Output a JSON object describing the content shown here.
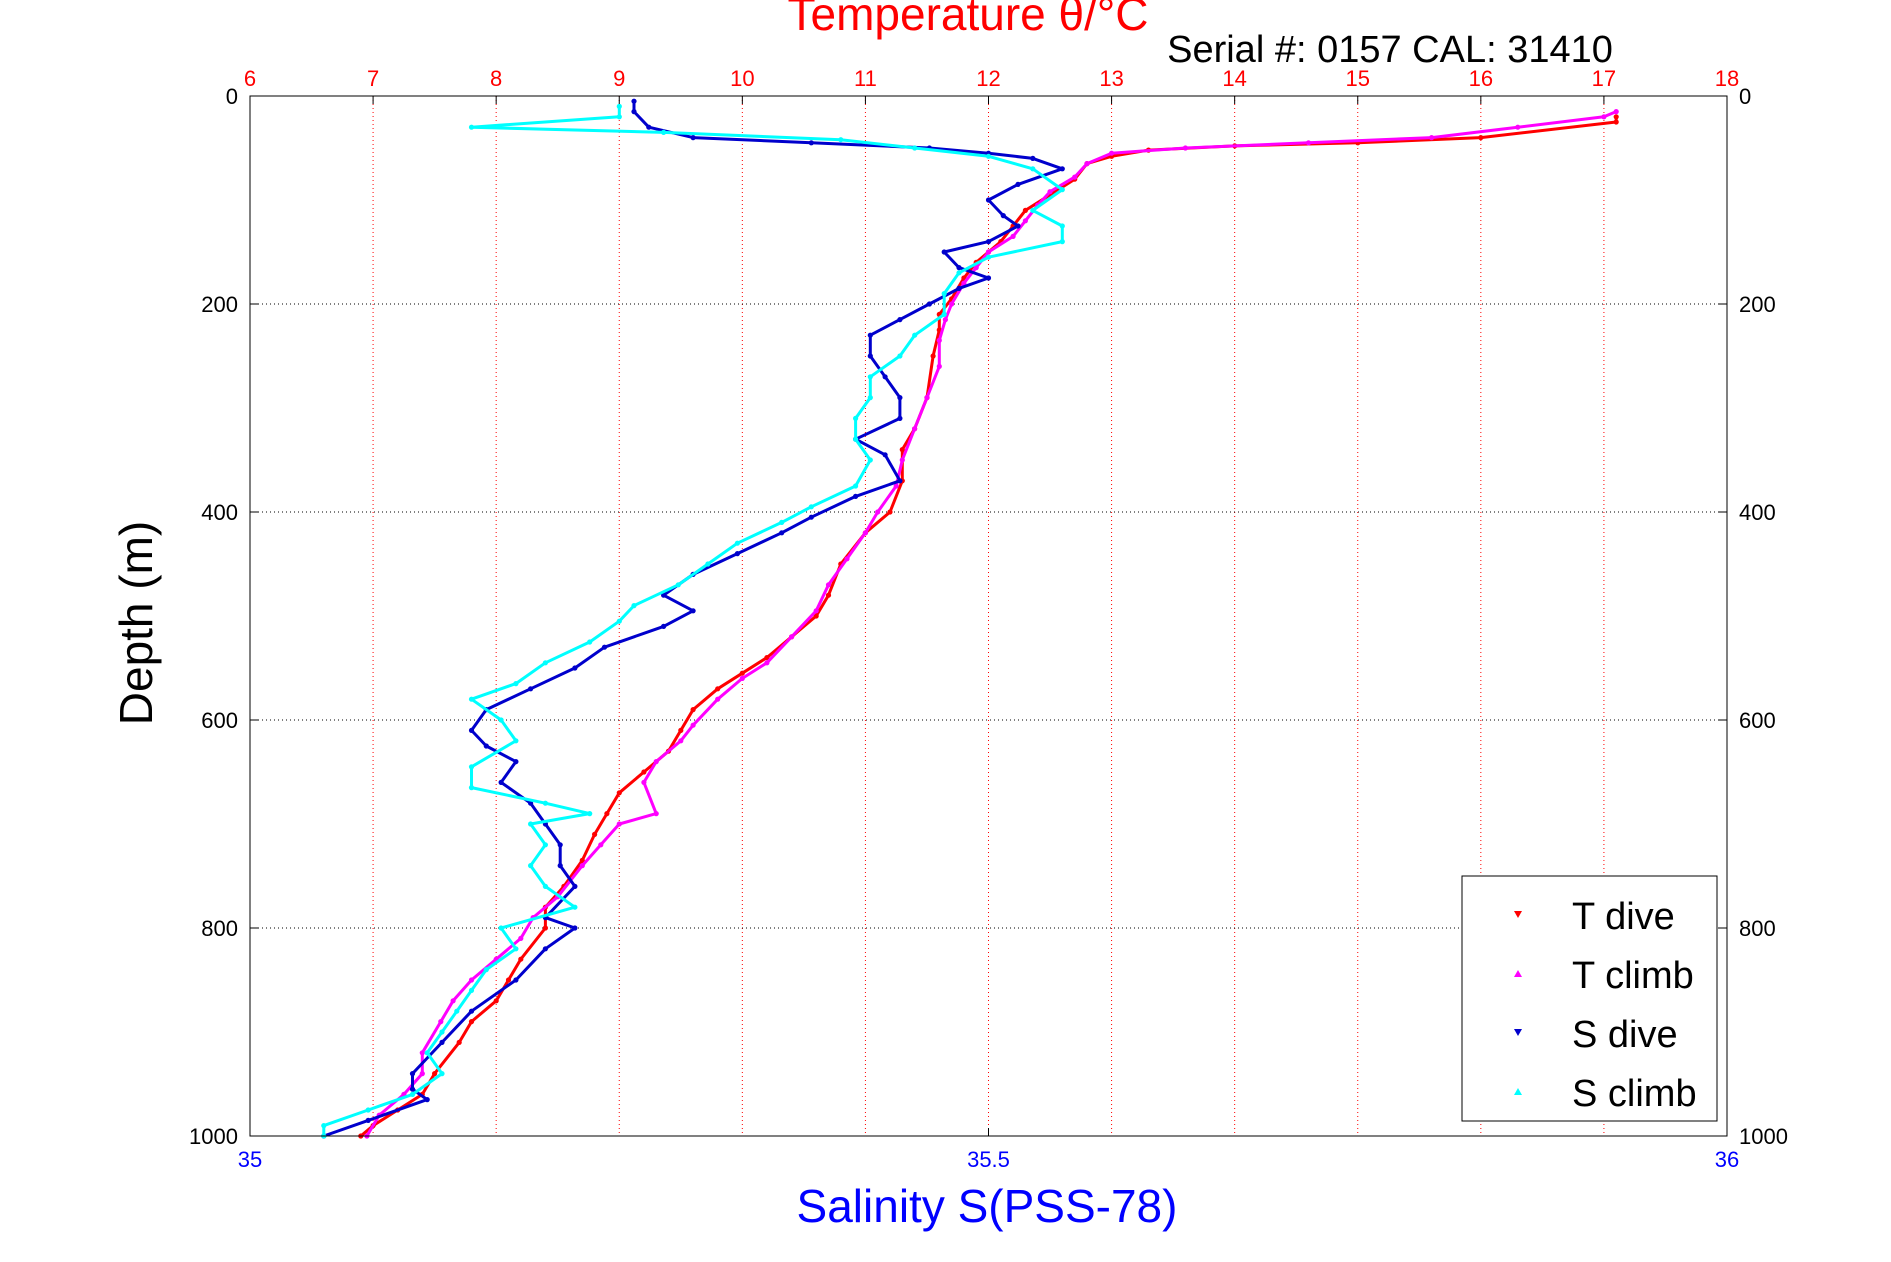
{
  "chart_data": {
    "type": "scatter",
    "title": "Temperature θ/°C",
    "subtitle": "Serial #: 0157  CAL: 31410",
    "ylabel": "Depth (m)",
    "xlabel_bottom": "Salinity S(PSS-78)",
    "top_axis": {
      "range": [
        6,
        18
      ],
      "ticks": [
        "6",
        "7",
        "8",
        "9",
        "10",
        "11",
        "12",
        "13",
        "14",
        "15",
        "16",
        "17",
        "18"
      ],
      "color": "#ff0000"
    },
    "bottom_axis": {
      "range": [
        35,
        36
      ],
      "ticks": [
        "35",
        "35.5",
        "36"
      ],
      "color": "#0000ff"
    },
    "y_axis": {
      "range": [
        0,
        1000
      ],
      "reversed": true,
      "ticks": [
        "0",
        "200",
        "400",
        "600",
        "800",
        "1000"
      ]
    },
    "grid": true,
    "legend_position": "bottom-right",
    "legend": [
      {
        "label": "T dive",
        "color": "#ff0000"
      },
      {
        "label": "T climb",
        "color": "#ff00ff"
      },
      {
        "label": "S dive",
        "color": "#0000cc"
      },
      {
        "label": "S climb",
        "color": "#00ffff"
      }
    ],
    "series": [
      {
        "name": "T dive",
        "axis": "temperature",
        "color": "#ff0000",
        "points": [
          [
            17.1,
            20
          ],
          [
            17.1,
            25
          ],
          [
            16.0,
            40
          ],
          [
            15.0,
            45
          ],
          [
            14.0,
            48
          ],
          [
            13.3,
            52
          ],
          [
            13.0,
            58
          ],
          [
            12.8,
            65
          ],
          [
            12.7,
            80
          ],
          [
            12.5,
            95
          ],
          [
            12.3,
            110
          ],
          [
            12.2,
            125
          ],
          [
            12.1,
            140
          ],
          [
            12.0,
            150
          ],
          [
            11.9,
            160
          ],
          [
            11.8,
            175
          ],
          [
            11.7,
            195
          ],
          [
            11.6,
            210
          ],
          [
            11.6,
            225
          ],
          [
            11.55,
            250
          ],
          [
            11.5,
            290
          ],
          [
            11.4,
            320
          ],
          [
            11.3,
            340
          ],
          [
            11.3,
            370
          ],
          [
            11.2,
            400
          ],
          [
            11.0,
            420
          ],
          [
            10.8,
            450
          ],
          [
            10.7,
            480
          ],
          [
            10.6,
            500
          ],
          [
            10.4,
            520
          ],
          [
            10.2,
            540
          ],
          [
            10.0,
            555
          ],
          [
            9.8,
            570
          ],
          [
            9.6,
            590
          ],
          [
            9.5,
            610
          ],
          [
            9.4,
            630
          ],
          [
            9.2,
            650
          ],
          [
            9.0,
            670
          ],
          [
            8.9,
            690
          ],
          [
            8.8,
            710
          ],
          [
            8.7,
            735
          ],
          [
            8.55,
            760
          ],
          [
            8.4,
            780
          ],
          [
            8.4,
            800
          ],
          [
            8.2,
            830
          ],
          [
            8.1,
            850
          ],
          [
            8.0,
            870
          ],
          [
            7.8,
            890
          ],
          [
            7.7,
            910
          ],
          [
            7.5,
            940
          ],
          [
            7.4,
            960
          ],
          [
            7.2,
            975
          ],
          [
            7.0,
            990
          ],
          [
            6.9,
            1000
          ]
        ]
      },
      {
        "name": "T climb",
        "axis": "temperature",
        "color": "#ff00ff",
        "points": [
          [
            17.1,
            15
          ],
          [
            17.0,
            20
          ],
          [
            16.3,
            30
          ],
          [
            15.6,
            40
          ],
          [
            14.6,
            45
          ],
          [
            13.6,
            50
          ],
          [
            13.0,
            55
          ],
          [
            12.8,
            65
          ],
          [
            12.7,
            78
          ],
          [
            12.5,
            92
          ],
          [
            12.4,
            105
          ],
          [
            12.3,
            120
          ],
          [
            12.2,
            135
          ],
          [
            12.0,
            150
          ],
          [
            11.9,
            165
          ],
          [
            11.8,
            180
          ],
          [
            11.7,
            200
          ],
          [
            11.65,
            215
          ],
          [
            11.6,
            235
          ],
          [
            11.6,
            260
          ],
          [
            11.5,
            290
          ],
          [
            11.4,
            320
          ],
          [
            11.3,
            350
          ],
          [
            11.25,
            375
          ],
          [
            11.1,
            400
          ],
          [
            11.0,
            420
          ],
          [
            10.85,
            445
          ],
          [
            10.7,
            470
          ],
          [
            10.6,
            495
          ],
          [
            10.4,
            520
          ],
          [
            10.2,
            545
          ],
          [
            10.0,
            560
          ],
          [
            9.8,
            580
          ],
          [
            9.6,
            605
          ],
          [
            9.5,
            620
          ],
          [
            9.3,
            640
          ],
          [
            9.2,
            660
          ],
          [
            9.3,
            690
          ],
          [
            9.0,
            700
          ],
          [
            8.85,
            720
          ],
          [
            8.7,
            740
          ],
          [
            8.5,
            770
          ],
          [
            8.3,
            790
          ],
          [
            8.2,
            810
          ],
          [
            8.0,
            830
          ],
          [
            7.8,
            850
          ],
          [
            7.65,
            870
          ],
          [
            7.55,
            890
          ],
          [
            7.4,
            920
          ],
          [
            7.4,
            940
          ],
          [
            7.25,
            960
          ],
          [
            7.05,
            980
          ],
          [
            6.95,
            1000
          ]
        ]
      },
      {
        "name": "S dive",
        "axis": "salinity",
        "color": "#0000cc",
        "points": [
          [
            35.26,
            5
          ],
          [
            35.26,
            15
          ],
          [
            35.27,
            30
          ],
          [
            35.3,
            40
          ],
          [
            35.38,
            45
          ],
          [
            35.46,
            50
          ],
          [
            35.5,
            55
          ],
          [
            35.53,
            60
          ],
          [
            35.55,
            70
          ],
          [
            35.52,
            85
          ],
          [
            35.5,
            100
          ],
          [
            35.51,
            115
          ],
          [
            35.52,
            125
          ],
          [
            35.5,
            140
          ],
          [
            35.47,
            150
          ],
          [
            35.48,
            165
          ],
          [
            35.5,
            175
          ],
          [
            35.48,
            185
          ],
          [
            35.46,
            200
          ],
          [
            35.44,
            215
          ],
          [
            35.42,
            230
          ],
          [
            35.42,
            250
          ],
          [
            35.43,
            270
          ],
          [
            35.44,
            290
          ],
          [
            35.44,
            310
          ],
          [
            35.41,
            330
          ],
          [
            35.43,
            345
          ],
          [
            35.44,
            370
          ],
          [
            35.41,
            385
          ],
          [
            35.38,
            405
          ],
          [
            35.36,
            420
          ],
          [
            35.33,
            440
          ],
          [
            35.3,
            460
          ],
          [
            35.28,
            480
          ],
          [
            35.3,
            495
          ],
          [
            35.28,
            510
          ],
          [
            35.24,
            530
          ],
          [
            35.22,
            550
          ],
          [
            35.19,
            570
          ],
          [
            35.16,
            590
          ],
          [
            35.15,
            610
          ],
          [
            35.16,
            625
          ],
          [
            35.18,
            640
          ],
          [
            35.17,
            660
          ],
          [
            35.19,
            680
          ],
          [
            35.2,
            700
          ],
          [
            35.21,
            720
          ],
          [
            35.21,
            740
          ],
          [
            35.22,
            760
          ],
          [
            35.2,
            790
          ],
          [
            35.22,
            800
          ],
          [
            35.2,
            820
          ],
          [
            35.18,
            850
          ],
          [
            35.15,
            880
          ],
          [
            35.13,
            910
          ],
          [
            35.11,
            940
          ],
          [
            35.11,
            955
          ],
          [
            35.12,
            965
          ],
          [
            35.08,
            985
          ],
          [
            35.05,
            1000
          ]
        ]
      },
      {
        "name": "S climb",
        "axis": "salinity",
        "color": "#00ffff",
        "points": [
          [
            35.25,
            10
          ],
          [
            35.25,
            20
          ],
          [
            35.15,
            30
          ],
          [
            35.28,
            35
          ],
          [
            35.4,
            42
          ],
          [
            35.45,
            50
          ],
          [
            35.5,
            58
          ],
          [
            35.53,
            70
          ],
          [
            35.55,
            90
          ],
          [
            35.53,
            110
          ],
          [
            35.55,
            125
          ],
          [
            35.55,
            140
          ],
          [
            35.5,
            155
          ],
          [
            35.48,
            170
          ],
          [
            35.47,
            190
          ],
          [
            35.47,
            210
          ],
          [
            35.45,
            230
          ],
          [
            35.44,
            250
          ],
          [
            35.42,
            270
          ],
          [
            35.42,
            290
          ],
          [
            35.41,
            310
          ],
          [
            35.41,
            330
          ],
          [
            35.42,
            350
          ],
          [
            35.41,
            375
          ],
          [
            35.38,
            395
          ],
          [
            35.36,
            410
          ],
          [
            35.33,
            430
          ],
          [
            35.31,
            450
          ],
          [
            35.29,
            470
          ],
          [
            35.26,
            490
          ],
          [
            35.25,
            505
          ],
          [
            35.23,
            525
          ],
          [
            35.2,
            545
          ],
          [
            35.18,
            565
          ],
          [
            35.15,
            580
          ],
          [
            35.17,
            600
          ],
          [
            35.18,
            620
          ],
          [
            35.15,
            645
          ],
          [
            35.15,
            665
          ],
          [
            35.2,
            680
          ],
          [
            35.23,
            690
          ],
          [
            35.19,
            700
          ],
          [
            35.2,
            720
          ],
          [
            35.19,
            740
          ],
          [
            35.2,
            760
          ],
          [
            35.22,
            780
          ],
          [
            35.17,
            800
          ],
          [
            35.18,
            820
          ],
          [
            35.16,
            840
          ],
          [
            35.15,
            860
          ],
          [
            35.14,
            880
          ],
          [
            35.13,
            900
          ],
          [
            35.12,
            920
          ],
          [
            35.13,
            940
          ],
          [
            35.11,
            960
          ],
          [
            35.08,
            975
          ],
          [
            35.05,
            990
          ],
          [
            35.05,
            1000
          ]
        ]
      }
    ]
  }
}
